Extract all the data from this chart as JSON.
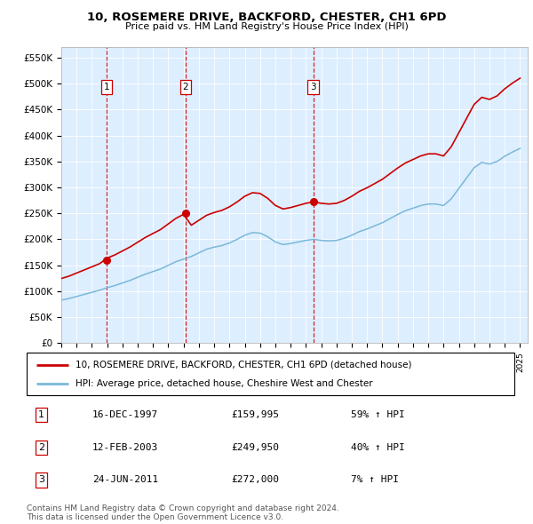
{
  "title1": "10, ROSEMERE DRIVE, BACKFORD, CHESTER, CH1 6PD",
  "title2": "Price paid vs. HM Land Registry's House Price Index (HPI)",
  "ylim": [
    0,
    570000
  ],
  "yticks": [
    0,
    50000,
    100000,
    150000,
    200000,
    250000,
    300000,
    350000,
    400000,
    450000,
    500000,
    550000
  ],
  "ytick_labels": [
    "£0",
    "£50K",
    "£100K",
    "£150K",
    "£200K",
    "£250K",
    "£300K",
    "£350K",
    "£400K",
    "£450K",
    "£500K",
    "£550K"
  ],
  "sale_dates": [
    1997.96,
    2003.12,
    2011.48
  ],
  "sale_prices": [
    159995,
    249950,
    272000
  ],
  "sale_labels": [
    "1",
    "2",
    "3"
  ],
  "hpi_color": "#7ab8d9",
  "price_color": "#cc0000",
  "dashed_line_color": "#cc0000",
  "background_color": "#ddeeff",
  "legend_line1": "10, ROSEMERE DRIVE, BACKFORD, CHESTER, CH1 6PD (detached house)",
  "legend_line2": "HPI: Average price, detached house, Cheshire West and Chester",
  "table_entries": [
    [
      "1",
      "16-DEC-1997",
      "£159,995",
      "59% ↑ HPI"
    ],
    [
      "2",
      "12-FEB-2003",
      "£249,950",
      "40% ↑ HPI"
    ],
    [
      "3",
      "24-JUN-2011",
      "£272,000",
      "7% ↑ HPI"
    ]
  ],
  "footer": "Contains HM Land Registry data © Crown copyright and database right 2024.\nThis data is licensed under the Open Government Licence v3.0.",
  "xlim_start": 1995.0,
  "xlim_end": 2025.5,
  "hpi_data_years": [
    1995.0,
    1995.5,
    1996.0,
    1996.5,
    1997.0,
    1997.5,
    1998.0,
    1998.5,
    1999.0,
    1999.5,
    2000.0,
    2000.5,
    2001.0,
    2001.5,
    2002.0,
    2002.5,
    2003.0,
    2003.5,
    2004.0,
    2004.5,
    2005.0,
    2005.5,
    2006.0,
    2006.5,
    2007.0,
    2007.5,
    2008.0,
    2008.5,
    2009.0,
    2009.5,
    2010.0,
    2010.5,
    2011.0,
    2011.5,
    2012.0,
    2012.5,
    2013.0,
    2013.5,
    2014.0,
    2014.5,
    2015.0,
    2015.5,
    2016.0,
    2016.5,
    2017.0,
    2017.5,
    2018.0,
    2018.5,
    2019.0,
    2019.5,
    2020.0,
    2020.5,
    2021.0,
    2021.5,
    2022.0,
    2022.5,
    2023.0,
    2023.5,
    2024.0,
    2024.5,
    2025.0
  ],
  "hpi_data_vals": [
    83000,
    86000,
    90000,
    94000,
    98000,
    102000,
    107000,
    111000,
    116000,
    121000,
    127000,
    133000,
    138000,
    143000,
    150000,
    157000,
    162000,
    167000,
    174000,
    181000,
    185000,
    188000,
    193000,
    200000,
    208000,
    213000,
    212000,
    205000,
    195000,
    190000,
    192000,
    195000,
    198000,
    200000,
    198000,
    197000,
    198000,
    202000,
    208000,
    215000,
    220000,
    226000,
    232000,
    240000,
    248000,
    255000,
    260000,
    265000,
    268000,
    268000,
    265000,
    278000,
    298000,
    318000,
    338000,
    348000,
    345000,
    350000,
    360000,
    368000,
    375000
  ]
}
